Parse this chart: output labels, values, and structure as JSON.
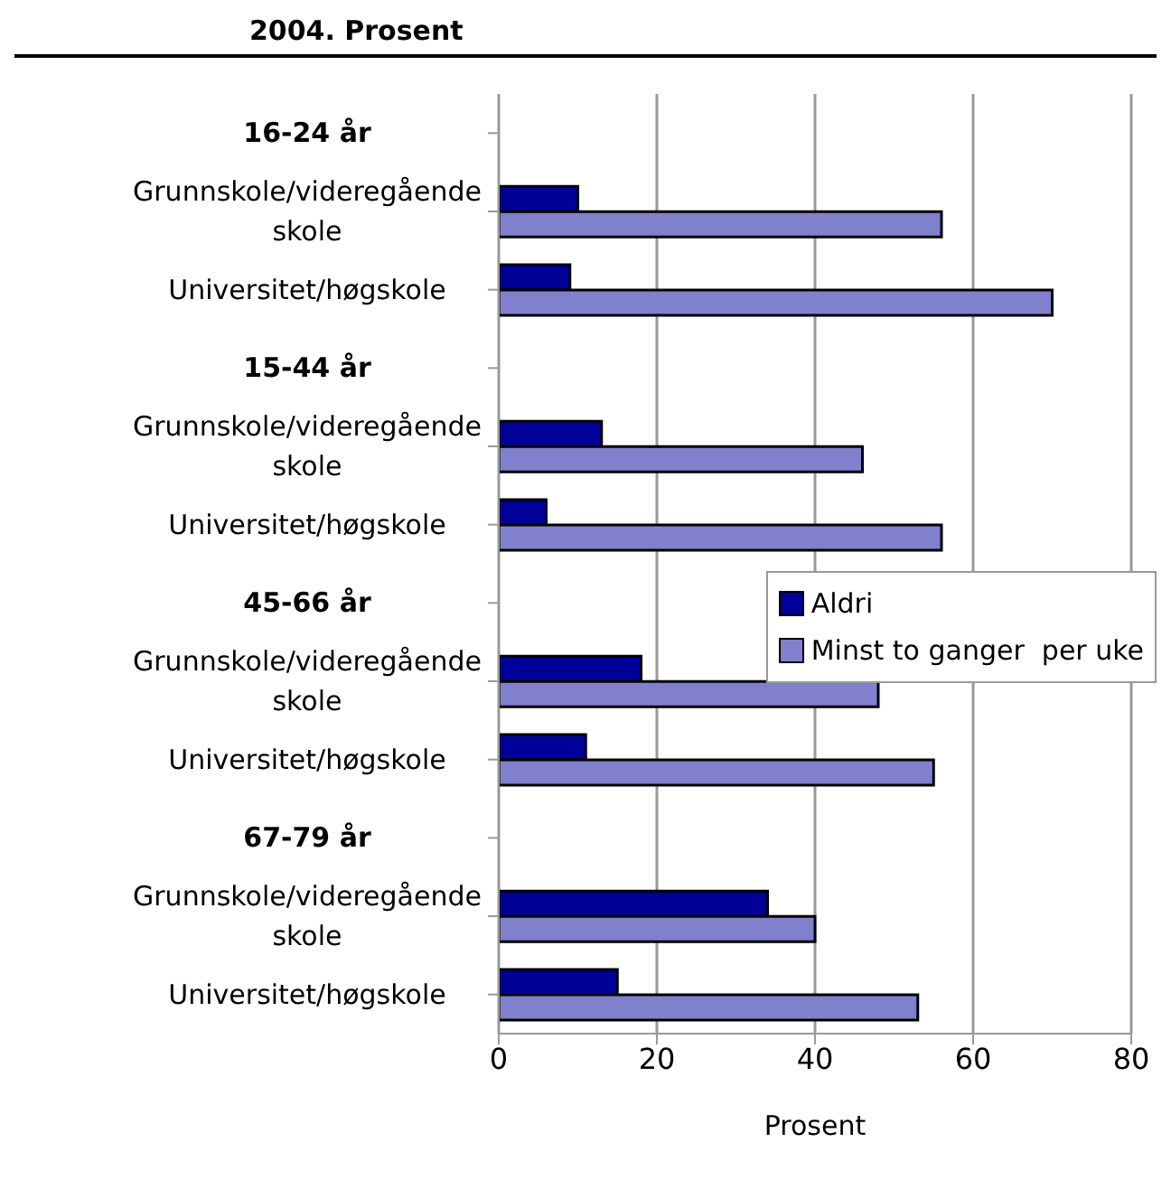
{
  "chart_data": {
    "type": "bar",
    "orientation": "horizontal",
    "title": "2004. Prosent",
    "xlabel": "Prosent",
    "categories": [
      "16-24 år",
      "Grunnskole/videregående skole",
      "Universitet/høgskole",
      "15-44 år",
      "Grunnskole/videregående skole",
      "Universitet/høgskole",
      "45-66 år",
      "Grunnskole/videregående skole",
      "Universitet/høgskole",
      "67-79 år",
      "Grunnskole/videregående skole",
      "Universitet/høgskole"
    ],
    "series": [
      {
        "name": "Aldri",
        "color": "#000099",
        "values": [
          null,
          10,
          9,
          null,
          13,
          6,
          null,
          18,
          11,
          null,
          34,
          15
        ]
      },
      {
        "name": "Minst to ganger  per uke",
        "color": "#8080cc",
        "values": [
          null,
          56,
          70,
          null,
          46,
          56,
          null,
          48,
          55,
          null,
          40,
          53
        ]
      }
    ],
    "xlim": [
      0,
      80
    ],
    "xticks": [
      0,
      20,
      40,
      60,
      80
    ],
    "grid": "x",
    "legend": "right"
  }
}
